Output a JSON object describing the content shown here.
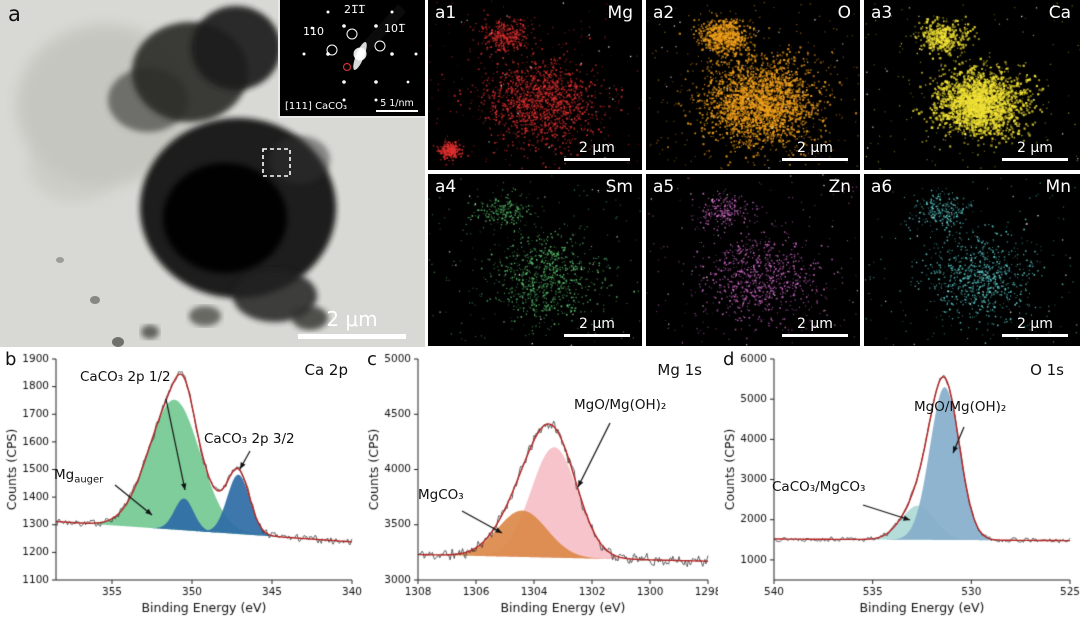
{
  "figure": {
    "panel_a": {
      "letter": "a",
      "scale_label": "2 μm",
      "inset": {
        "zone_label": "[111] CaCO₃",
        "scale_label": "5 1/nm",
        "spot_labels": [
          "21̅1̅",
          "110",
          "101̅"
        ]
      }
    },
    "maps": [
      {
        "id": "a1",
        "element": "Mg",
        "color": "#e23030",
        "scale_label": "2 μm",
        "density": "medium"
      },
      {
        "id": "a2",
        "element": "O",
        "color": "#f2a11c",
        "scale_label": "2 μm",
        "density": "dense"
      },
      {
        "id": "a3",
        "element": "Ca",
        "color": "#f2e235",
        "scale_label": "2 μm",
        "density": "dense-tight"
      },
      {
        "id": "a4",
        "element": "Sm",
        "color": "#5ecb74",
        "scale_label": "2 μm",
        "density": "sparse"
      },
      {
        "id": "a5",
        "element": "Zn",
        "color": "#df72d8",
        "scale_label": "2 μm",
        "density": "sparse"
      },
      {
        "id": "a6",
        "element": "Mn",
        "color": "#62d8d8",
        "scale_label": "2 μm",
        "density": "sparse"
      }
    ]
  },
  "chart_data": [
    {
      "id": "b",
      "panel_letter": "b",
      "type": "area",
      "title": "Ca 2p",
      "xlabel": "Binding Energy (eV)",
      "ylabel": "Counts (CPS)",
      "xlim": [
        358.5,
        340
      ],
      "ylim": [
        1100,
        1900
      ],
      "xticks": [
        355,
        350,
        345,
        340
      ],
      "yticks": [
        1100,
        1200,
        1300,
        1400,
        1500,
        1600,
        1700,
        1800,
        1900
      ],
      "baseline": [
        1312,
        1238
      ],
      "noise": 16,
      "envelope_color": "#b22222",
      "data_color": "#3a3a3a",
      "peaks": [
        {
          "label": "Mg auger",
          "center": 351.1,
          "sigma": 1.6,
          "amp": 470,
          "color": "#74c993"
        },
        {
          "label": "CaCO₃ 2p 1/2",
          "center": 350.5,
          "sigma": 0.6,
          "amp": 115,
          "color": "#2e6da6"
        },
        {
          "label": "CaCO₃ 2p 3/2",
          "center": 347.1,
          "sigma": 0.7,
          "amp": 215,
          "color": "#2e6da6"
        }
      ],
      "annotations": [
        {
          "text": "Mg",
          "sub": "auger"
        },
        {
          "text": "CaCO₃ 2p 1/2",
          "sub": ""
        },
        {
          "text": "CaCO₃ 2p 3/2",
          "sub": ""
        }
      ]
    },
    {
      "id": "c",
      "panel_letter": "c",
      "type": "area",
      "title": "Mg 1s",
      "xlabel": "Binding Energy (eV)",
      "ylabel": "Counts (CPS)",
      "xlim": [
        1308,
        1298
      ],
      "ylim": [
        3000,
        5000
      ],
      "xticks": [
        1308,
        1306,
        1304,
        1302,
        1300,
        1298
      ],
      "yticks": [
        3000,
        3500,
        4000,
        4500,
        5000
      ],
      "baseline": [
        3230,
        3170
      ],
      "noise": 62,
      "envelope_color": "#b22222",
      "data_color": "#3a3a3a",
      "peaks": [
        {
          "label": "MgO/Mg(OH)₂",
          "center": 1303.3,
          "sigma": 0.8,
          "amp": 1000,
          "color": "#f5bfc6"
        },
        {
          "label": "MgCO₃",
          "center": 1304.4,
          "sigma": 0.85,
          "amp": 420,
          "color": "#dd8a4a"
        }
      ],
      "annotations": [
        {
          "text": "MgCO₃",
          "sub": ""
        },
        {
          "text": "MgO/Mg(OH)₂",
          "sub": ""
        }
      ]
    },
    {
      "id": "d",
      "panel_letter": "d",
      "type": "area",
      "title": "O 1s",
      "xlabel": "Binding Energy (eV)",
      "ylabel": "Counts (CPS)",
      "xlim": [
        540,
        525
      ],
      "ylim": [
        500,
        6000
      ],
      "xticks": [
        540,
        535,
        530,
        525
      ],
      "yticks": [
        1000,
        2000,
        3000,
        4000,
        5000,
        6000
      ],
      "baseline": [
        1520,
        1480
      ],
      "noise": 68,
      "envelope_color": "#b22222",
      "data_color": "#3a3a3a",
      "peaks": [
        {
          "label": "CaCO₃/MgCO₃",
          "center": 532.7,
          "sigma": 0.85,
          "amp": 850,
          "color": "#aed9d6"
        },
        {
          "label": "MgO/Mg(OH)₂",
          "center": 531.35,
          "sigma": 0.75,
          "amp": 3800,
          "color": "#86aecb"
        }
      ],
      "annotations": [
        {
          "text": "CaCO₃/MgCO₃",
          "sub": ""
        },
        {
          "text": "MgO/Mg(OH)₂",
          "sub": ""
        }
      ]
    }
  ]
}
